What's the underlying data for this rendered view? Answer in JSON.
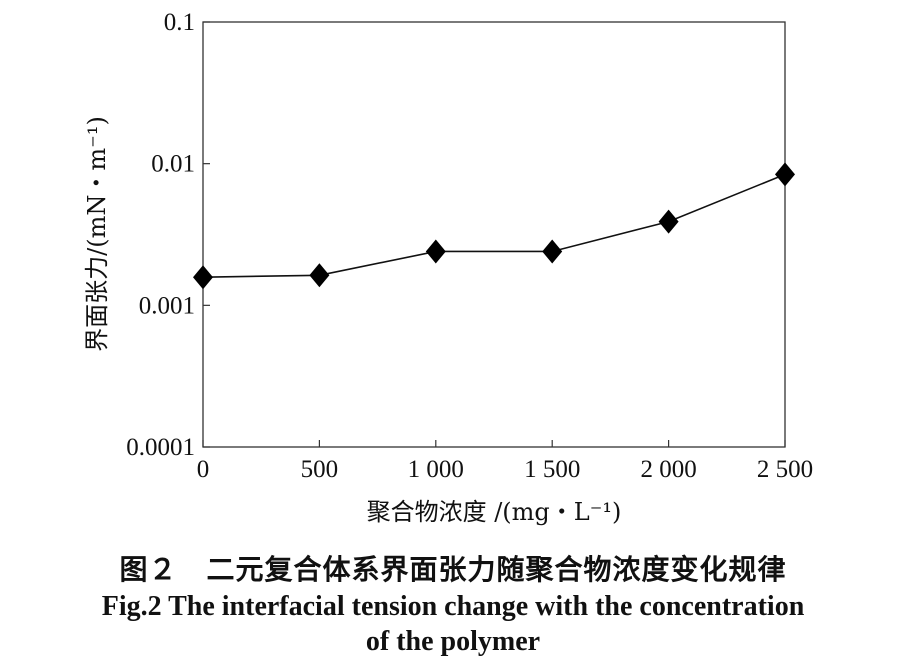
{
  "chart_data": {
    "type": "line",
    "xlabel": "聚合物浓度 /(mg・L⁻¹)",
    "ylabel": "界面张力/(mN・m⁻¹)",
    "x_ticks": [
      "0",
      "500",
      "1 000",
      "1 500",
      "2 000",
      "2 500"
    ],
    "y_ticks": [
      "0.1",
      "0.01",
      "0.001",
      "0.0001"
    ],
    "xlim": [
      0,
      2500
    ],
    "ylim": [
      0.0001,
      0.1
    ],
    "y_scale": "log",
    "grid": false,
    "marker": "diamond",
    "color": "#000000",
    "x": [
      0,
      500,
      1000,
      1500,
      2000,
      2500
    ],
    "y": [
      0.00158,
      0.00163,
      0.0024,
      0.0024,
      0.0039,
      0.0084
    ]
  },
  "caption": {
    "cn": "图２　二元复合体系界面张力随聚合物浓度变化规律",
    "en_line1": "Fig.2 The interfacial tension change with the concentration",
    "en_line2": "of the polymer"
  }
}
